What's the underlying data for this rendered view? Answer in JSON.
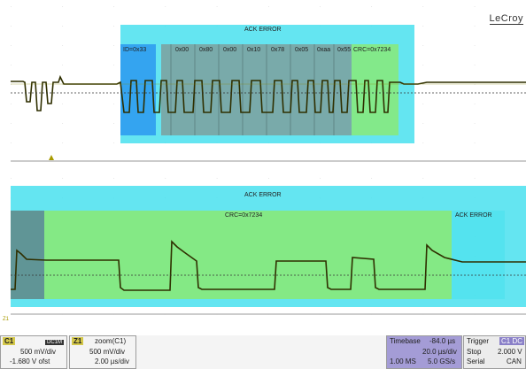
{
  "brand": "LeCroy",
  "colors": {
    "cyan": "#49e1ee",
    "green": "#86e97e",
    "id_blue": "#2f9cf0",
    "data_gray": "#7ba3a2",
    "trace": "#2f2f00",
    "channel_yellow": "#d4c84a",
    "timebase_purple": "#a49cd6"
  },
  "top_panel": {
    "frame_label": "ACK ERROR",
    "id_field": "ID=0x33",
    "data_bytes": [
      "0x00",
      "0x80",
      "0x00",
      "0x10",
      "0x78",
      "0x05",
      "0xaa",
      "0x55"
    ],
    "crc_field": "CRC=0x7234",
    "channel_marker": "C1"
  },
  "bottom_panel": {
    "frame_label": "ACK ERROR",
    "crc_field": "CRC=0x7234",
    "ack_label": "ACK ERROR",
    "channel_marker": "Z1"
  },
  "channel_c1": {
    "name": "C1",
    "coupling": "DC1M",
    "scale": "500 mV/div",
    "offset": "-1.680 V ofst"
  },
  "zoom_z1": {
    "name": "Z1",
    "source": "zoom(C1)",
    "scale": "500 mV/div",
    "timescale": "2.00 µs/div"
  },
  "timebase": {
    "label": "Timebase",
    "delay": "-84.0 µs",
    "per_div": "20.0 µs/div",
    "samples": "1.00 MS",
    "rate": "5.0 GS/s"
  },
  "trigger": {
    "label": "Trigger",
    "tag": "C1 DC",
    "mode": "Stop",
    "level": "2.000 V",
    "type": "Serial",
    "protocol": "CAN"
  }
}
